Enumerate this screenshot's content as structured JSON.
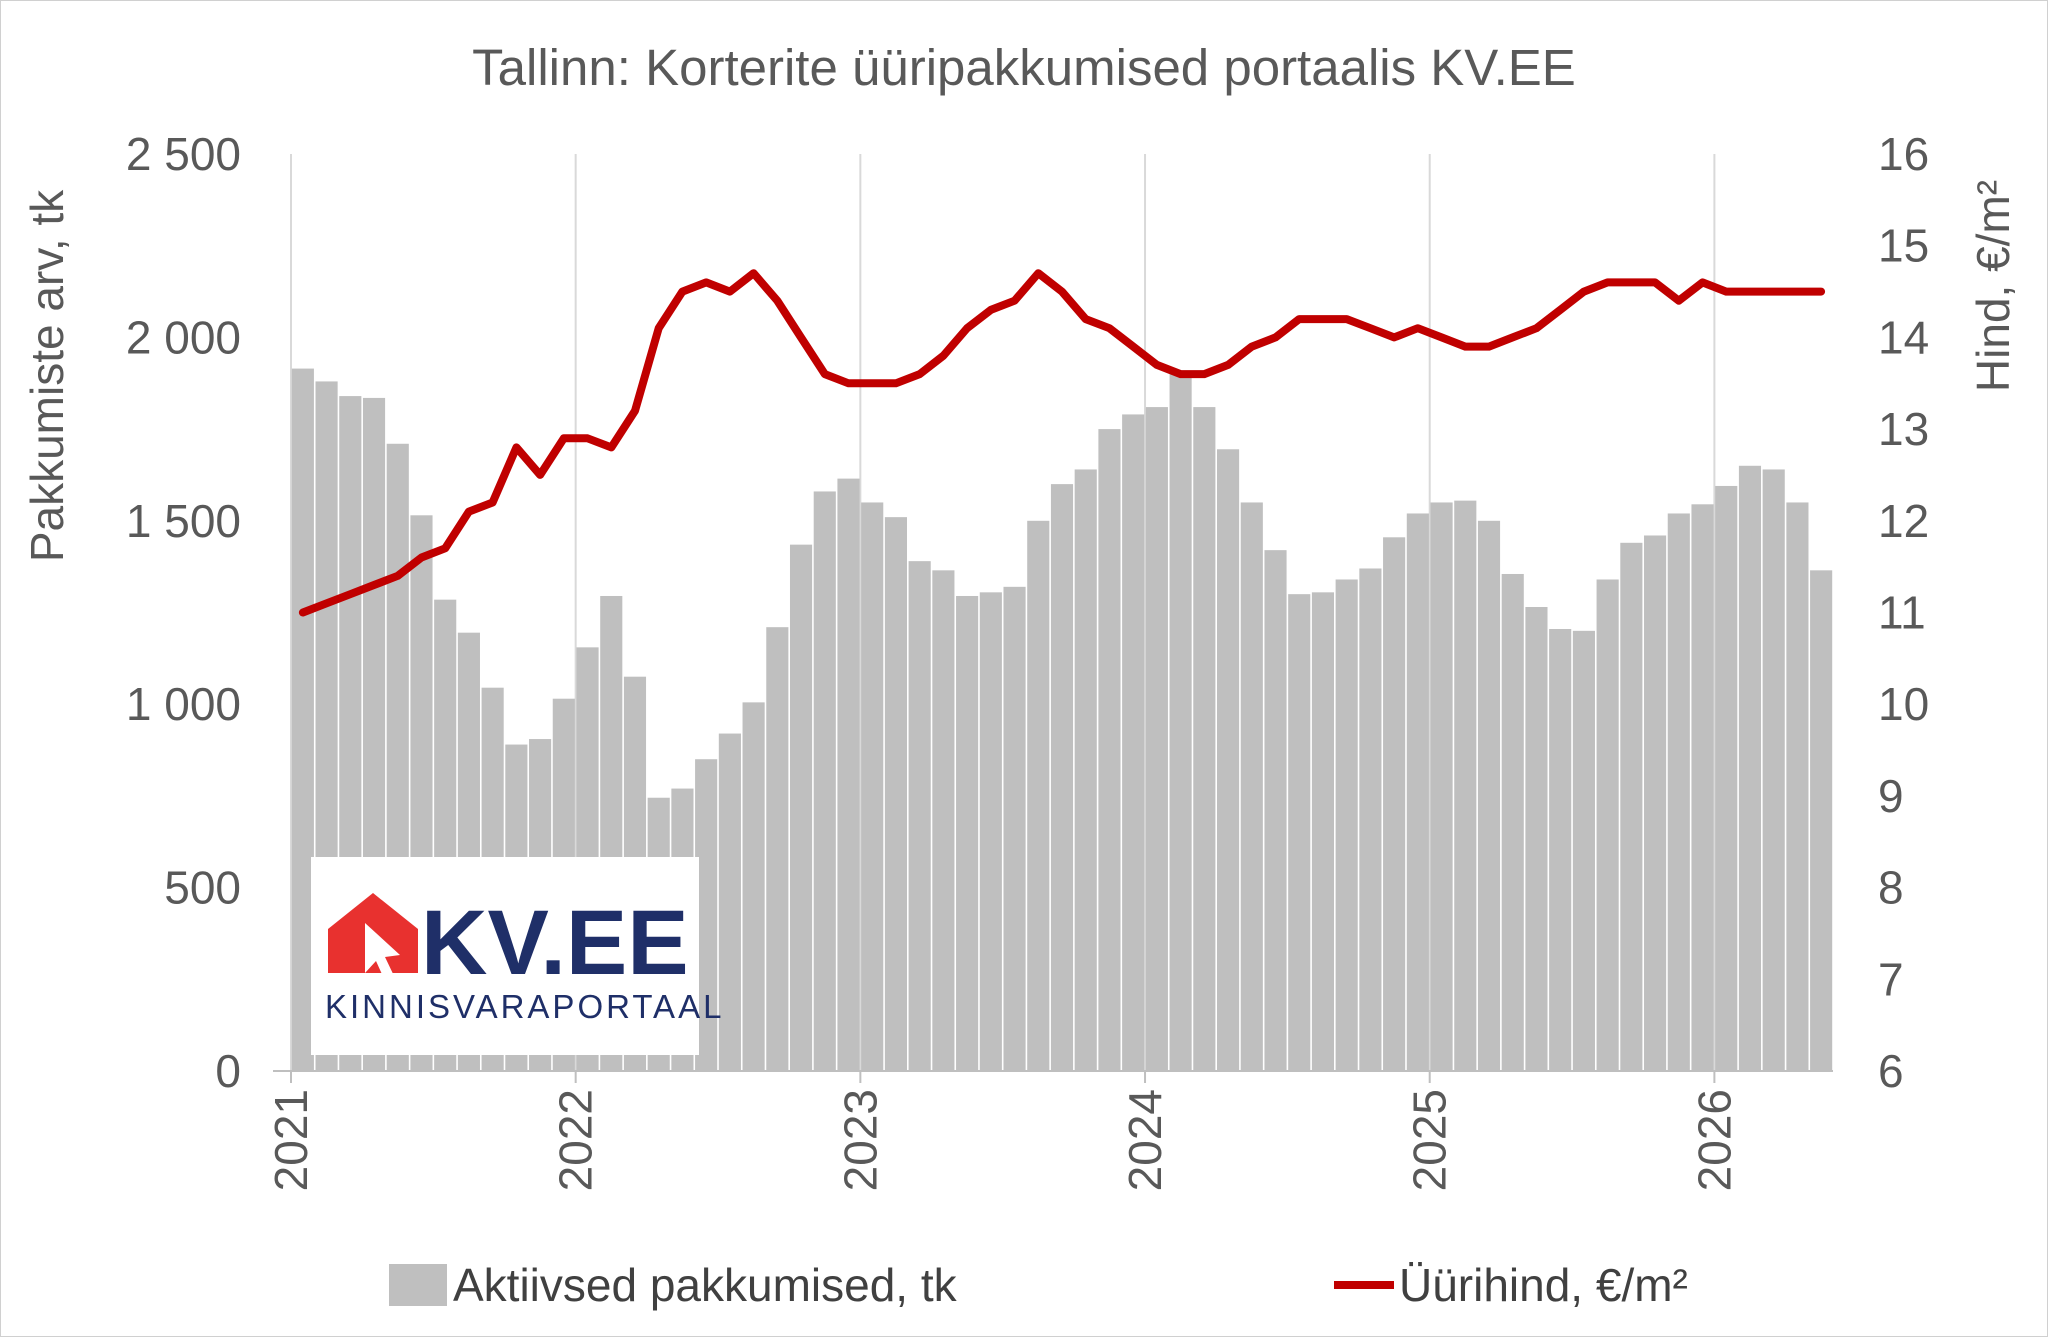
{
  "chart_data": {
    "type": "bar+line",
    "title": "Tallinn: Korterite üüripakkumised portaalis KV.EE",
    "ylabel": "Pakkumiste arv, tk",
    "y2label": "Hind, €/m²",
    "ylim": [
      0,
      2500
    ],
    "y2lim": [
      6,
      16
    ],
    "yticks": [
      "0",
      "500",
      "1 000",
      "1 500",
      "2 000",
      "2 500"
    ],
    "y2ticks": [
      "6",
      "7",
      "8",
      "9",
      "10",
      "11",
      "12",
      "13",
      "14",
      "15",
      "16"
    ],
    "xticks": [
      "2021",
      "2022",
      "2023",
      "2024",
      "2025",
      "2026"
    ],
    "x_start": "2021-01",
    "grid": "vertical",
    "legend_position": "bottom",
    "series": [
      {
        "name": "Aktiivsed pakkumised, tk",
        "type": "bar",
        "color": "#bfbfbf",
        "values": [
          1915,
          1880,
          1840,
          1835,
          1710,
          1515,
          1285,
          1195,
          1045,
          890,
          905,
          1015,
          1155,
          1295,
          1075,
          745,
          770,
          850,
          920,
          1005,
          1210,
          1435,
          1580,
          1615,
          1550,
          1510,
          1390,
          1365,
          1295,
          1305,
          1320,
          1500,
          1600,
          1640,
          1750,
          1790,
          1810,
          1905,
          1810,
          1695,
          1550,
          1420,
          1300,
          1305,
          1340,
          1370,
          1455,
          1520,
          1550,
          1555,
          1500,
          1355,
          1265,
          1205,
          1200,
          1340,
          1440,
          1460,
          1520,
          1545,
          1595,
          1650,
          1640,
          1550,
          1365
        ]
      },
      {
        "name": "Üürihind, €/m²",
        "type": "line",
        "color": "#c00000",
        "values": [
          11.0,
          11.1,
          11.2,
          11.3,
          11.4,
          11.6,
          11.7,
          12.1,
          12.2,
          12.8,
          12.5,
          12.9,
          12.9,
          12.8,
          13.2,
          14.1,
          14.5,
          14.6,
          14.5,
          14.7,
          14.4,
          14.0,
          13.6,
          13.5,
          13.5,
          13.5,
          13.6,
          13.8,
          14.1,
          14.3,
          14.4,
          14.7,
          14.5,
          14.2,
          14.1,
          13.9,
          13.7,
          13.6,
          13.6,
          13.7,
          13.9,
          14.0,
          14.2,
          14.2,
          14.2,
          14.1,
          14.0,
          14.1,
          14.0,
          13.9,
          13.9,
          14.0,
          14.1,
          14.3,
          14.5,
          14.6,
          14.6,
          14.6,
          14.4,
          14.6,
          14.5,
          14.5,
          14.5,
          14.5,
          14.5
        ]
      }
    ]
  },
  "logo": {
    "name": "KV.EE",
    "tagline": "KINNISVARAPORTAAL",
    "icon": "house-arrow-icon",
    "icon_color": "#e8312f",
    "text_color": "#1f2f68"
  }
}
